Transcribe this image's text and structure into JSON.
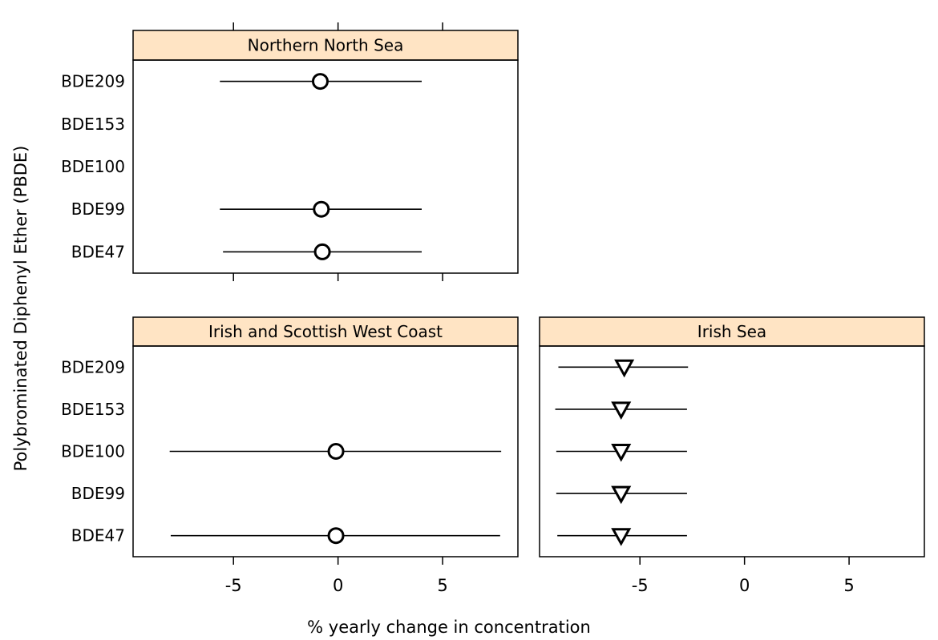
{
  "chart_data": {
    "type": "scatter",
    "subtype": "dot-plot-with-intervals",
    "xlabel": "% yearly change in concentration",
    "ylabel": "Polybrominated Diphenyl Ether (PBDE)",
    "xlim": [
      -9.8,
      8.6
    ],
    "xticks": [
      -5,
      0,
      5
    ],
    "xtick_labels": [
      "-5",
      "0",
      "5"
    ],
    "categories": [
      "BDE209",
      "BDE153",
      "BDE100",
      "BDE99",
      "BDE47"
    ],
    "strip_color": "#FFE4C4",
    "panels": [
      {
        "title": "Northern North Sea",
        "points": [
          {
            "category": "BDE209",
            "estimate": -0.85,
            "lower": -5.65,
            "upper": 4.0,
            "marker": "circle"
          },
          {
            "category": "BDE99",
            "estimate": -0.8,
            "lower": -5.65,
            "upper": 4.0,
            "marker": "circle"
          },
          {
            "category": "BDE47",
            "estimate": -0.75,
            "lower": -5.5,
            "upper": 4.0,
            "marker": "circle"
          }
        ]
      },
      {
        "title": "Irish and Scottish West Coast",
        "points": [
          {
            "category": "BDE100",
            "estimate": -0.1,
            "lower": -8.05,
            "upper": 7.8,
            "marker": "circle"
          },
          {
            "category": "BDE47",
            "estimate": -0.1,
            "lower": -8.0,
            "upper": 7.75,
            "marker": "circle"
          }
        ]
      },
      {
        "title": "Irish Sea",
        "points": [
          {
            "category": "BDE209",
            "estimate": -5.75,
            "lower": -8.9,
            "upper": -2.7,
            "marker": "triangle-down"
          },
          {
            "category": "BDE153",
            "estimate": -5.9,
            "lower": -9.05,
            "upper": -2.75,
            "marker": "triangle-down"
          },
          {
            "category": "BDE100",
            "estimate": -5.9,
            "lower": -9.0,
            "upper": -2.75,
            "marker": "triangle-down"
          },
          {
            "category": "BDE99",
            "estimate": -5.9,
            "lower": -9.0,
            "upper": -2.75,
            "marker": "triangle-down"
          },
          {
            "category": "BDE47",
            "estimate": -5.9,
            "lower": -8.95,
            "upper": -2.75,
            "marker": "triangle-down"
          }
        ]
      }
    ]
  }
}
